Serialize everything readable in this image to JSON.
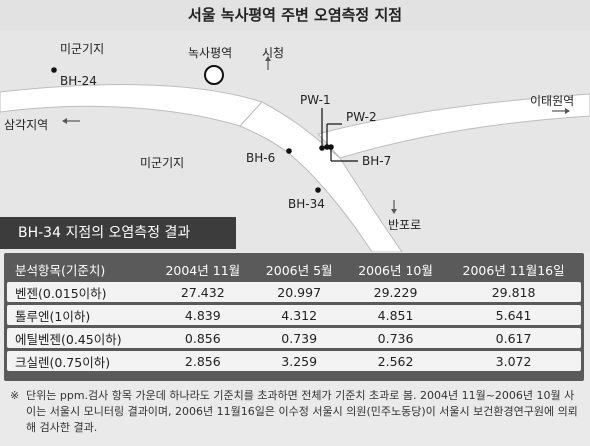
{
  "title": "서울 녹사평역 주변 오염측정 지점",
  "map": {
    "labels": {
      "base_west": "미군기지",
      "station": "녹사평역",
      "city_hall": "시청",
      "bh24": "BH-24",
      "pw1": "PW-1",
      "pw2": "PW-2",
      "itaewon": "이태원역",
      "samgakji": "삼각지역",
      "base_center": "미군기지",
      "bh6": "BH-6",
      "bh7": "BH-7",
      "bh34": "BH-34",
      "banpo": "반포로"
    }
  },
  "table": {
    "panel_title": "BH-34 지점의 오염측정 결과",
    "headers": [
      "분석항목(기준치)",
      "2004년 11월",
      "2006년 5월",
      "2006년 10월",
      "2006년 11월16일"
    ],
    "rows": [
      [
        "벤젠(0.015이하)",
        "27.432",
        "20.997",
        "29.229",
        "29.818"
      ],
      [
        "톨루엔(1이하)",
        "4.839",
        "4.312",
        "4.851",
        "5.641"
      ],
      [
        "에틸벤젠(0.45이하)",
        "0.856",
        "0.739",
        "0.736",
        "0.617"
      ],
      [
        "크실렌(0.75이하)",
        "2.856",
        "3.259",
        "2.562",
        "3.072"
      ]
    ]
  },
  "note": {
    "mark": "※",
    "text": "단위는 ppm.검사 항목 가운데 하나라도 기준치를 초과하면 전체가 기준치 초과로 봄. 2004년 11월~2006년 10월 사이는 서울시 모니터링 결과이며, 2006년 11월16일은 이수정 서울시 의원(민주노동당)이 서울시 보건환경연구원에 의뢰해 검사한 결과."
  }
}
